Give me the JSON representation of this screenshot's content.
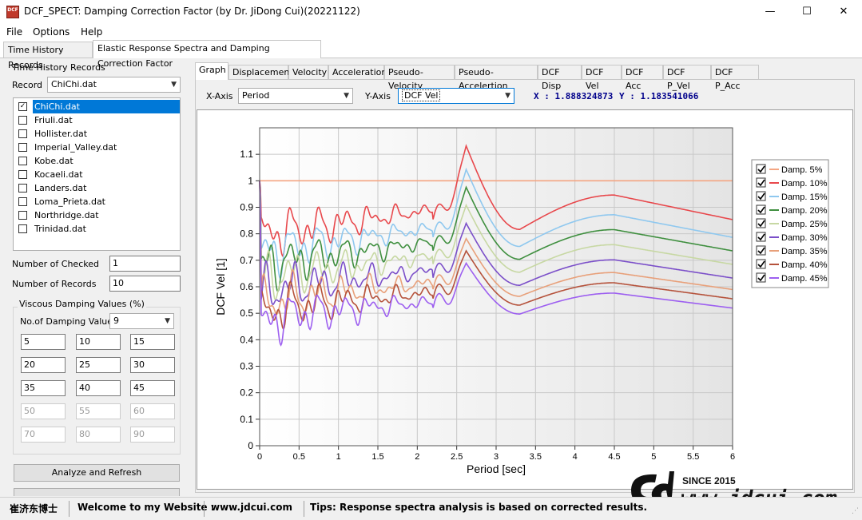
{
  "window": {
    "title": "DCF_SPECT: Damping Correction Factor (by Dr. JiDong Cui)(20221122)",
    "icon_text": "DCF",
    "minimize": "—",
    "maximize": "☐",
    "close": "✕"
  },
  "menu": [
    "File",
    "Options",
    "Help"
  ],
  "outer_tabs": [
    "Time History Records",
    "Elastic Response Spectra and Damping Correction Factor"
  ],
  "left": {
    "group_title": "Time History Records",
    "record_label": "Record",
    "record_value": "ChiChi.dat",
    "records": [
      {
        "name": "ChiChi.dat",
        "checked": true,
        "selected": true
      },
      {
        "name": "Friuli.dat",
        "checked": false
      },
      {
        "name": "Hollister.dat",
        "checked": false
      },
      {
        "name": "Imperial_Valley.dat",
        "checked": false
      },
      {
        "name": "Kobe.dat",
        "checked": false
      },
      {
        "name": "Kocaeli.dat",
        "checked": false
      },
      {
        "name": "Landers.dat",
        "checked": false
      },
      {
        "name": "Loma_Prieta.dat",
        "checked": false
      },
      {
        "name": "Northridge.dat",
        "checked": false
      },
      {
        "name": "Trinidad.dat",
        "checked": false
      }
    ],
    "checked_label": "Number of Checked",
    "checked_value": "1",
    "records_label": "Number of Records",
    "records_value": "10",
    "damping_group": "Viscous Damping Values (%)",
    "damping_count_label": "No.of Damping Values",
    "damping_count": "9",
    "damping_values": [
      "5",
      "10",
      "15",
      "20",
      "25",
      "30",
      "35",
      "40",
      "45",
      "50",
      "55",
      "60",
      "70",
      "80",
      "90"
    ],
    "analyze_button": "Analyze and Refresh"
  },
  "inner_tabs": [
    "Graph",
    "Displacement",
    "Velocity",
    "Acceleration",
    "Pseudo-Velocity",
    "Pseudo-Accelertion",
    "DCF Disp",
    "DCF Vel",
    "DCF Acc",
    "DCF P_Vel",
    "DCF P_Acc"
  ],
  "axis_select": {
    "x_label": "X-Axis",
    "x_value": "Period",
    "y_label": "Y-Axis",
    "y_value": "DCF Vel",
    "x_readout": "X : 1.888324873",
    "y_readout": "Y : 1.183541066"
  },
  "chart_data": {
    "type": "line",
    "xlabel": "Period [sec]",
    "ylabel": "DCF Vel [1]",
    "xlim": [
      0,
      6
    ],
    "ylim": [
      0,
      1.2
    ],
    "xticks": [
      "0",
      "0.5",
      "1",
      "1.5",
      "2",
      "2.5",
      "3",
      "3.5",
      "4",
      "4.5",
      "5",
      "5.5",
      "6"
    ],
    "yticks": [
      "0",
      "0.1",
      "0.2",
      "0.3",
      "0.4",
      "0.5",
      "0.6",
      "0.7",
      "0.8",
      "0.9",
      "1",
      "1.1"
    ],
    "grid": true,
    "legend_position": "right",
    "series": [
      {
        "name": "Damp. 5%",
        "color": "#f4a582",
        "peak": 1.0
      },
      {
        "name": "Damp. 10%",
        "color": "#e8484c",
        "peak": 0.92
      },
      {
        "name": "Damp. 15%",
        "color": "#8fc8ef",
        "peak": 0.84
      },
      {
        "name": "Damp. 20%",
        "color": "#3f8f3f",
        "peak": 0.78
      },
      {
        "name": "Damp. 25%",
        "color": "#c7d8a3",
        "peak": 0.72
      },
      {
        "name": "Damp. 30%",
        "color": "#7b4fc9",
        "peak": 0.66
      },
      {
        "name": "Damp. 35%",
        "color": "#e8a07a",
        "peak": 0.61
      },
      {
        "name": "Damp. 40%",
        "color": "#b5523b",
        "peak": 0.57
      },
      {
        "name": "Damp. 45%",
        "color": "#9d5ff0",
        "peak": 0.53
      }
    ]
  },
  "status": {
    "author": "崔济东博士",
    "welcome": "Welcome to my Website :",
    "website": "www.jdcui.com",
    "tips": "Tips: Response spectra analysis is based on corrected results."
  },
  "logo": {
    "since": "SINCE 2015",
    "url": "www.jdcui.com"
  }
}
